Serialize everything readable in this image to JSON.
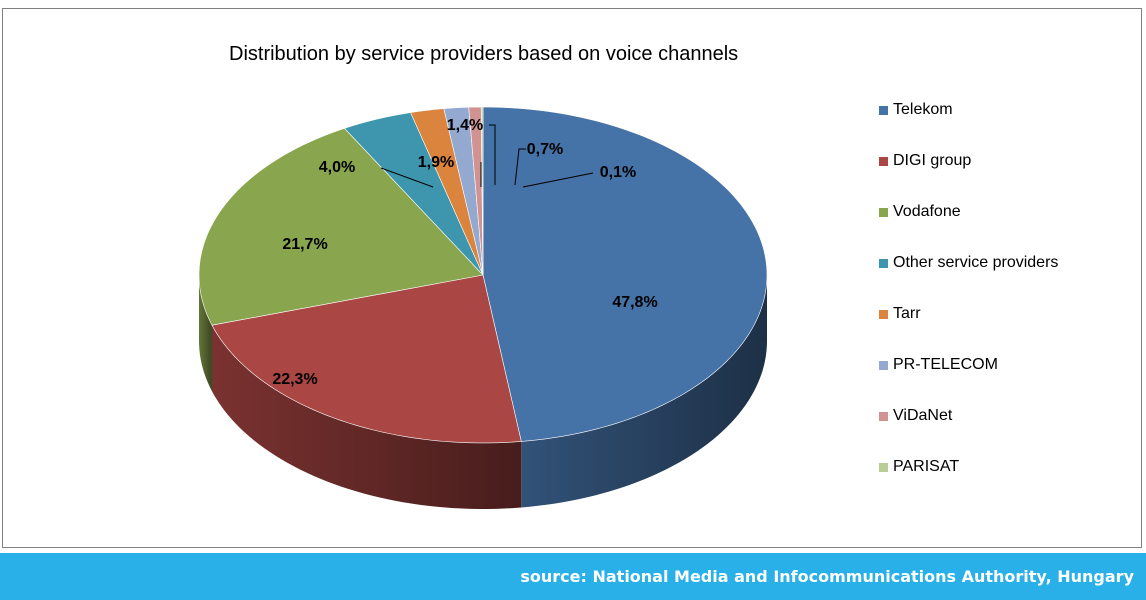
{
  "chart_data": {
    "type": "pie",
    "title": "Distribution by service providers based on voice channels",
    "legend_position": "right",
    "categories": [
      "Telekom",
      "DIGI group",
      "Vodafone",
      "Other service providers",
      "Tarr",
      "PR-TELECOM",
      "ViDaNet",
      "PARISAT"
    ],
    "values": [
      47.8,
      22.3,
      21.7,
      4.0,
      1.9,
      1.4,
      0.7,
      0.1
    ],
    "value_labels": [
      "47,8%",
      "22,3%",
      "21,7%",
      "4,0%",
      "1,9%",
      "1,4%",
      "0,7%",
      "0,1%"
    ],
    "colors": [
      "#4572a7",
      "#aa4643",
      "#89a54e",
      "#3d96ae",
      "#db843d",
      "#93a9cf",
      "#d19392",
      "#b9cd96"
    ]
  },
  "footer": {
    "source": "source: National Media and Infocommunications Authority, Hungary",
    "color": "#2ab0e8"
  }
}
